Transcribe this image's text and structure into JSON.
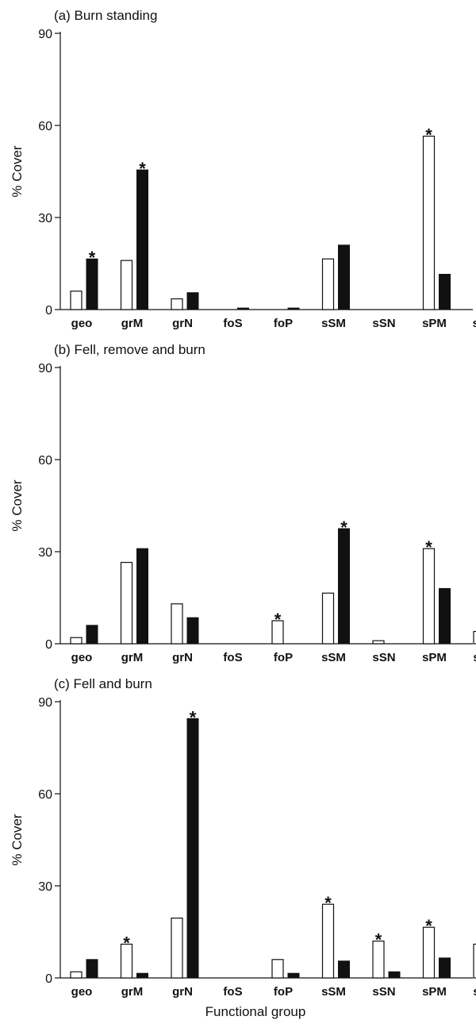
{
  "chart_data": [
    {
      "type": "bar",
      "title": "(a) Burn standing",
      "ylabel": "% Cover",
      "xlabel": "",
      "ylim": [
        0,
        90
      ],
      "yticks": [
        0,
        30,
        60,
        90
      ],
      "categories": [
        "geo",
        "grM",
        "grN",
        "foS",
        "foP",
        "sSM",
        "sSN",
        "sPM",
        "sPM"
      ],
      "series": [
        {
          "style": "open",
          "values": [
            6,
            16,
            3.5,
            0,
            0,
            16.5,
            0,
            56.5,
            0
          ]
        },
        {
          "style": "filled",
          "values": [
            16.5,
            45.5,
            5.5,
            0.5,
            0.5,
            21,
            0,
            11.5,
            0.5
          ]
        }
      ],
      "significant": [
        true,
        true,
        false,
        false,
        false,
        false,
        false,
        true,
        false
      ],
      "colors": {
        "open": "#ffffff",
        "filled": "#111111"
      }
    },
    {
      "type": "bar",
      "title": "(b) Fell, remove and burn",
      "ylabel": "% Cover",
      "xlabel": "",
      "ylim": [
        0,
        90
      ],
      "yticks": [
        0,
        30,
        60,
        90
      ],
      "categories": [
        "geo",
        "grM",
        "grN",
        "foS",
        "foP",
        "sSM",
        "sSN",
        "sPM",
        "sPN"
      ],
      "series": [
        {
          "style": "open",
          "values": [
            2,
            26.5,
            13,
            0,
            7.5,
            16.5,
            1,
            31,
            4
          ]
        },
        {
          "style": "filled",
          "values": [
            6,
            31,
            8.5,
            0,
            0,
            37.5,
            0,
            18,
            0
          ]
        }
      ],
      "significant": [
        false,
        false,
        false,
        false,
        true,
        true,
        false,
        true,
        false
      ],
      "colors": {
        "open": "#ffffff",
        "filled": "#111111"
      }
    },
    {
      "type": "bar",
      "title": "(c) Fell and burn",
      "ylabel": "% Cover",
      "xlabel": "Functional group",
      "ylim": [
        0,
        90
      ],
      "yticks": [
        0,
        30,
        60,
        90
      ],
      "categories": [
        "geo",
        "grM",
        "grN",
        "foS",
        "foP",
        "sSM",
        "sSN",
        "sPM",
        "sPN"
      ],
      "series": [
        {
          "style": "open",
          "values": [
            2,
            11,
            19.5,
            0,
            6,
            24,
            12,
            16.5,
            11
          ]
        },
        {
          "style": "filled",
          "values": [
            6,
            1.5,
            84.5,
            0,
            1.5,
            5.5,
            2,
            6.5,
            0
          ]
        }
      ],
      "significant": [
        false,
        true,
        true,
        false,
        false,
        true,
        true,
        true,
        true
      ],
      "colors": {
        "open": "#ffffff",
        "filled": "#111111"
      }
    }
  ],
  "significance_marker": "*"
}
